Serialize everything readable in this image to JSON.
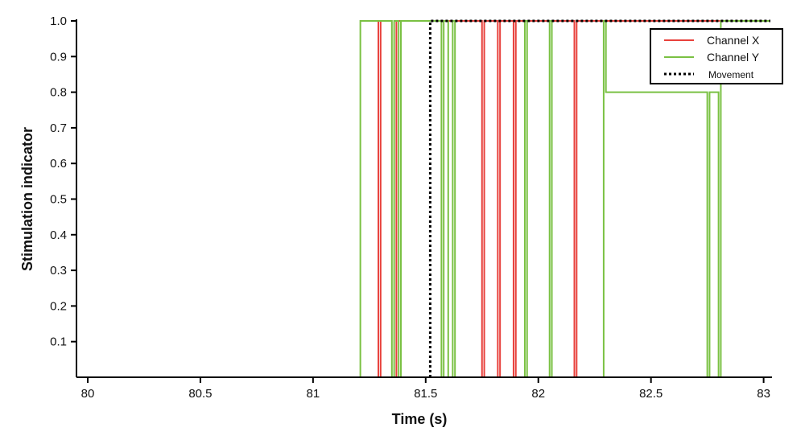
{
  "chart_data": {
    "type": "line",
    "xlabel": "Time (s)",
    "ylabel": "Stimulation indicator",
    "xlim": [
      79.95,
      83.03
    ],
    "ylim": [
      0.0,
      1.0
    ],
    "x_ticks": [
      80,
      80.5,
      81,
      81.5,
      82,
      82.5,
      83
    ],
    "x_tick_labels": [
      "80",
      "80.5",
      "81",
      "81.5",
      "82",
      "82.5",
      "83"
    ],
    "y_ticks": [
      0.1,
      0.2,
      0.3,
      0.4,
      0.5,
      0.6,
      0.7,
      0.8,
      0.9,
      1.0
    ],
    "y_tick_labels": [
      "0.1",
      "0.2",
      "0.3",
      "0.4",
      "0.5",
      "0.6",
      "0.7",
      "0.8",
      "0.9",
      "1.0"
    ],
    "grid": false,
    "legend_position": "top-right",
    "legend_box_visible": true,
    "series": [
      {
        "name": "Channel X",
        "color": "#e8413c",
        "style": "solid",
        "x": [
          79.95,
          81.29,
          81.29,
          81.3,
          81.3,
          81.37,
          81.37,
          81.75,
          81.75,
          81.76,
          81.76,
          81.82,
          81.82,
          81.83,
          81.83,
          81.89,
          81.89,
          81.9,
          81.9,
          82.16,
          82.16,
          82.17,
          82.17,
          83.03
        ],
        "y": [
          0,
          0,
          1,
          1,
          0,
          0,
          1,
          1,
          0,
          0,
          1,
          1,
          0,
          0,
          1,
          1,
          0,
          0,
          1,
          1,
          0,
          0,
          1,
          1
        ]
      },
      {
        "name": "Channel Y",
        "color": "#7ac143",
        "style": "solid",
        "x": [
          79.95,
          81.21,
          81.21,
          81.35,
          81.35,
          81.36,
          81.36,
          81.38,
          81.38,
          81.39,
          81.39,
          81.57,
          81.57,
          81.58,
          81.58,
          81.6,
          81.6,
          81.62,
          81.62,
          81.63,
          81.63,
          81.94,
          81.94,
          81.95,
          81.95,
          82.05,
          82.05,
          82.06,
          82.06,
          82.29,
          82.29,
          82.3,
          82.3,
          82.75,
          82.75,
          82.76,
          82.76,
          82.8,
          82.8,
          82.81,
          82.81,
          83.03
        ],
        "y": [
          0,
          0,
          1,
          1,
          0,
          0,
          1,
          1,
          0,
          0,
          1,
          1,
          0,
          0,
          1,
          1,
          0,
          0,
          1,
          1,
          0,
          0,
          1,
          1,
          0,
          0,
          1,
          1,
          0,
          0,
          1,
          1,
          0.8,
          0.8,
          0,
          0,
          0.8,
          0.8,
          0,
          0,
          1,
          1
        ]
      },
      {
        "name": "Movement",
        "color": "#000000",
        "style": "dotted",
        "x": [
          81.52,
          81.52,
          83.03
        ],
        "y": [
          0,
          1,
          1
        ]
      }
    ]
  }
}
